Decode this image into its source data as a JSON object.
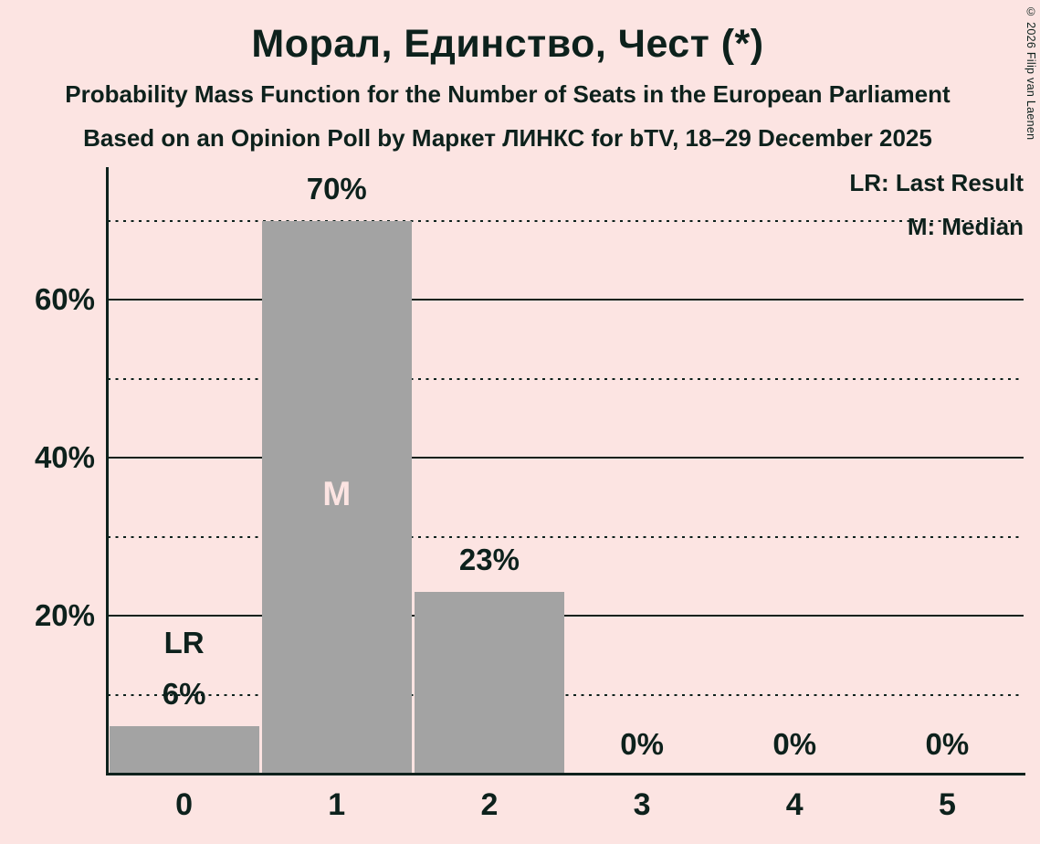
{
  "title": "Морал, Единство, Чест (*)",
  "subtitle": "Probability Mass Function for the Number of Seats in the European Parliament",
  "source_line": "Based on an Opinion Poll by Маркет ЛИНКС for bTV, 18–29 December 2025",
  "copyright": "© 2026 Filip van Laenen",
  "legend": {
    "last_result": "LR: Last Result",
    "median": "M: Median"
  },
  "colors": {
    "background": "#fce4e2",
    "bar": "#a3a3a3",
    "ink": "#0d211c"
  },
  "chart_data": {
    "type": "bar",
    "title": "Морал, Единство, Чест (*)",
    "categories": [
      "0",
      "1",
      "2",
      "3",
      "4",
      "5"
    ],
    "values": [
      6,
      70,
      23,
      0,
      0,
      0
    ],
    "value_labels": [
      "6%",
      "70%",
      "23%",
      "0%",
      "0%",
      "0%"
    ],
    "ylim": [
      0,
      77
    ],
    "yticks": [
      {
        "value": 20,
        "label": "20%"
      },
      {
        "value": 40,
        "label": "40%"
      },
      {
        "value": 60,
        "label": "60%"
      }
    ],
    "gridlines": {
      "solid": [
        20,
        40,
        60
      ],
      "dotted": [
        10,
        30,
        50,
        70
      ]
    },
    "annotations": {
      "last_result": {
        "category": "0",
        "label": "LR"
      },
      "median": {
        "category": "1",
        "label": "M"
      }
    },
    "legend_position": "top-right",
    "grid": true,
    "xlabel": "",
    "ylabel": ""
  }
}
